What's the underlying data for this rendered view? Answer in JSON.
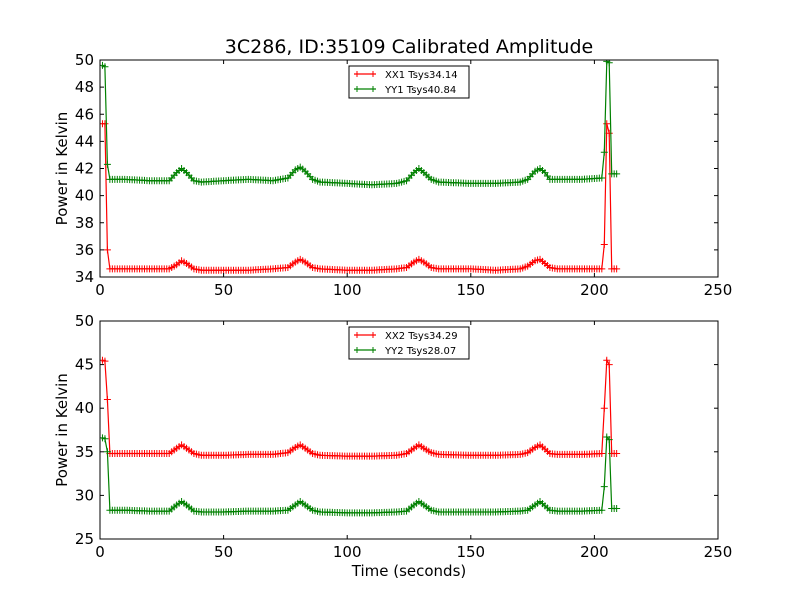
{
  "chart_data": [
    {
      "type": "line",
      "title": "3C286, ID:35109 Calibrated Amplitude",
      "xlabel": "",
      "ylabel": "Power in Kelvin",
      "xlim": [
        0,
        250
      ],
      "ylim": [
        34,
        50
      ],
      "xticks": [
        "0",
        "50",
        "100",
        "150",
        "200",
        "250"
      ],
      "yticks": [
        "34",
        "36",
        "38",
        "40",
        "42",
        "44",
        "46",
        "48",
        "50"
      ],
      "legend_position": "top-center",
      "series": [
        {
          "name": "XX1 Tsys34.14",
          "color": "#ff0000",
          "marker": "plus",
          "x": [
            1,
            2,
            3,
            4,
            10,
            20,
            28,
            31,
            33,
            35,
            38,
            41,
            50,
            60,
            70,
            76,
            79,
            81,
            83,
            86,
            89,
            100,
            110,
            120,
            124,
            127,
            129,
            131,
            134,
            137,
            150,
            160,
            170,
            173,
            176,
            178,
            180,
            182,
            185,
            195,
            203,
            204,
            205,
            206,
            207,
            209
          ],
          "y": [
            45.3,
            45.3,
            36.0,
            34.6,
            34.6,
            34.6,
            34.6,
            34.9,
            35.2,
            35.0,
            34.6,
            34.5,
            34.5,
            34.5,
            34.6,
            34.7,
            35.1,
            35.3,
            35.1,
            34.7,
            34.6,
            34.5,
            34.5,
            34.6,
            34.7,
            35.1,
            35.3,
            35.1,
            34.7,
            34.6,
            34.6,
            34.5,
            34.6,
            34.8,
            35.2,
            35.3,
            35.0,
            34.7,
            34.6,
            34.6,
            34.6,
            36.4,
            45.3,
            44.6,
            34.6,
            34.6
          ]
        },
        {
          "name": "YY1 Tsys40.84",
          "color": "#008000",
          "marker": "plus",
          "x": [
            1,
            2,
            3,
            4,
            10,
            20,
            28,
            31,
            33,
            35,
            38,
            41,
            50,
            60,
            70,
            76,
            79,
            81,
            83,
            86,
            89,
            100,
            110,
            120,
            124,
            127,
            129,
            131,
            134,
            137,
            150,
            160,
            170,
            173,
            176,
            178,
            180,
            182,
            185,
            195,
            203,
            204,
            205,
            206,
            207,
            209
          ],
          "y": [
            49.6,
            49.5,
            42.3,
            41.2,
            41.2,
            41.1,
            41.1,
            41.7,
            42.0,
            41.7,
            41.1,
            41.0,
            41.1,
            41.2,
            41.1,
            41.3,
            41.9,
            42.1,
            41.8,
            41.2,
            41.0,
            40.9,
            40.8,
            40.9,
            41.1,
            41.7,
            42.0,
            41.7,
            41.2,
            41.0,
            40.9,
            40.9,
            41.0,
            41.2,
            41.8,
            42.0,
            41.7,
            41.2,
            41.2,
            41.2,
            41.3,
            43.2,
            49.9,
            49.8,
            41.6,
            41.6
          ]
        }
      ]
    },
    {
      "type": "line",
      "title": "",
      "xlabel": "Time (seconds)",
      "ylabel": "Power in Kelvin",
      "xlim": [
        0,
        250
      ],
      "ylim": [
        25,
        50
      ],
      "xticks": [
        "0",
        "50",
        "100",
        "150",
        "200",
        "250"
      ],
      "yticks": [
        "25",
        "30",
        "35",
        "40",
        "45",
        "50"
      ],
      "legend_position": "top-center",
      "series": [
        {
          "name": "XX2 Tsys34.29",
          "color": "#ff0000",
          "marker": "plus",
          "x": [
            1,
            2,
            3,
            4,
            10,
            20,
            28,
            31,
            33,
            35,
            38,
            41,
            50,
            60,
            70,
            76,
            79,
            81,
            83,
            86,
            89,
            100,
            110,
            120,
            124,
            127,
            129,
            131,
            134,
            137,
            150,
            160,
            170,
            173,
            176,
            178,
            180,
            182,
            185,
            195,
            203,
            204,
            205,
            206,
            207,
            209
          ],
          "y": [
            45.5,
            45.4,
            41.0,
            34.8,
            34.8,
            34.8,
            34.8,
            35.4,
            35.8,
            35.4,
            34.8,
            34.6,
            34.6,
            34.7,
            34.7,
            34.9,
            35.5,
            35.8,
            35.4,
            34.8,
            34.6,
            34.5,
            34.5,
            34.6,
            34.8,
            35.4,
            35.8,
            35.4,
            34.9,
            34.7,
            34.6,
            34.6,
            34.7,
            34.9,
            35.5,
            35.8,
            35.3,
            34.8,
            34.7,
            34.7,
            34.8,
            40.0,
            45.5,
            45.0,
            34.8,
            34.8
          ]
        },
        {
          "name": "YY2 Tsys28.07",
          "color": "#008000",
          "marker": "plus",
          "x": [
            1,
            2,
            3,
            4,
            10,
            20,
            28,
            31,
            33,
            35,
            38,
            41,
            50,
            60,
            70,
            76,
            79,
            81,
            83,
            86,
            89,
            100,
            110,
            120,
            124,
            127,
            129,
            131,
            134,
            137,
            150,
            160,
            170,
            173,
            176,
            178,
            180,
            182,
            185,
            195,
            203,
            204,
            205,
            206,
            207,
            209
          ],
          "y": [
            36.6,
            36.5,
            35.0,
            28.3,
            28.3,
            28.2,
            28.2,
            28.9,
            29.3,
            28.9,
            28.2,
            28.1,
            28.1,
            28.2,
            28.2,
            28.3,
            28.9,
            29.3,
            28.9,
            28.3,
            28.1,
            28.0,
            28.0,
            28.1,
            28.2,
            28.9,
            29.3,
            28.9,
            28.3,
            28.1,
            28.1,
            28.1,
            28.2,
            28.3,
            28.9,
            29.3,
            28.8,
            28.3,
            28.2,
            28.2,
            28.3,
            31.0,
            36.7,
            36.4,
            28.5,
            28.5
          ]
        }
      ]
    }
  ]
}
